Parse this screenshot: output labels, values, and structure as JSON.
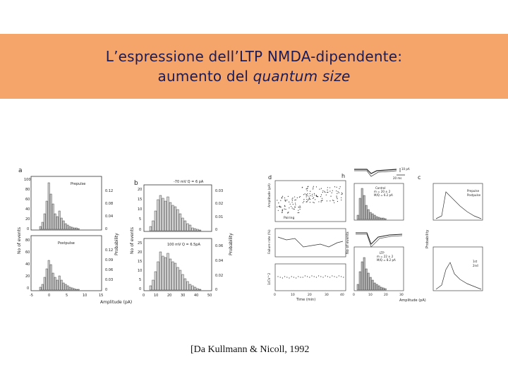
{
  "title": {
    "line1": "L’espressione dell’LTP NMDA-dipendente:",
    "line2_prefix": "aumento del ",
    "line2_italic": "quantum size"
  },
  "citation": "[Da Kullmann & Nicoll, 1992",
  "colors": {
    "title_band": "#f5a46a",
    "title_text": "#1b1b55"
  },
  "figure": {
    "panel_letters": [
      "a",
      "b",
      "d",
      "h",
      "c"
    ],
    "left_panels": {
      "ylabel_counts": "No of events",
      "ylabel_probability": "Probability",
      "xlabel": "Amplitude (pA)",
      "a_top_label": "Prepulse",
      "a_bottom_label": "Postpulse",
      "b_top_label": "-70 mV Q = 6 pA",
      "b_bottom_label": "100 mV Q = 6.5pA",
      "a_yticks": [
        "0",
        "20",
        "40",
        "60",
        "80",
        "100"
      ],
      "a_yticks_bottom": [
        "0",
        "20",
        "40",
        "60",
        "80"
      ],
      "a_prob_ticks_top": [
        "0",
        "0.04",
        "0.08",
        "0.12"
      ],
      "a_prob_ticks_bottom": [
        "0",
        "0.03",
        "0.06",
        "0.09",
        "0.12"
      ],
      "a_xticks": [
        "-5",
        "0",
        "5",
        "10",
        "15"
      ],
      "b_yticks_top": [
        "0",
        "5",
        "10",
        "15",
        "20"
      ],
      "b_yticks_bottom": [
        "0",
        "5",
        "10",
        "15",
        "20",
        "25"
      ],
      "b_prob_ticks_top": [
        "0",
        "0.01",
        "0.02",
        "0.03"
      ],
      "b_prob_ticks_bottom": [
        "0",
        "0.02",
        "0.04",
        "0.06"
      ],
      "b_xticks": [
        "0",
        "10",
        "20",
        "30",
        "40",
        "50"
      ]
    },
    "right_panels": {
      "d_ylabel_top": "Amplitude (pA)",
      "d_ylabel_mid": "Failure rate (%)",
      "d_ylabel_bottom": "1/CV^2",
      "d_xlabel": "Time (min)",
      "d_pairing": "Pairing",
      "d_xticks": [
        "0",
        "10",
        "20",
        "30",
        "40"
      ],
      "h_scale_current": "10 pA",
      "h_scale_time": "20 ms",
      "h_control": "Control",
      "h_control_m": "m = 20 ± 2",
      "h_control_mcq": "M/Q = 6.2 pA",
      "h_ltp": "LTP",
      "h_ltp_m": "m = 22 ± 2",
      "h_ltp_mcq": "M/Q = 8.2 pA",
      "h_ylabel": "No of events",
      "h_xlabel": "Amplitude (pA)",
      "h_xticks": [
        "0",
        "10",
        "20",
        "30"
      ],
      "c_ylabel": "Probability",
      "c_legend_pre": "Prepulse",
      "c_legend_post": "Postpulse",
      "c_legend_1st": "1st",
      "c_legend_2nd": "2nd"
    }
  }
}
